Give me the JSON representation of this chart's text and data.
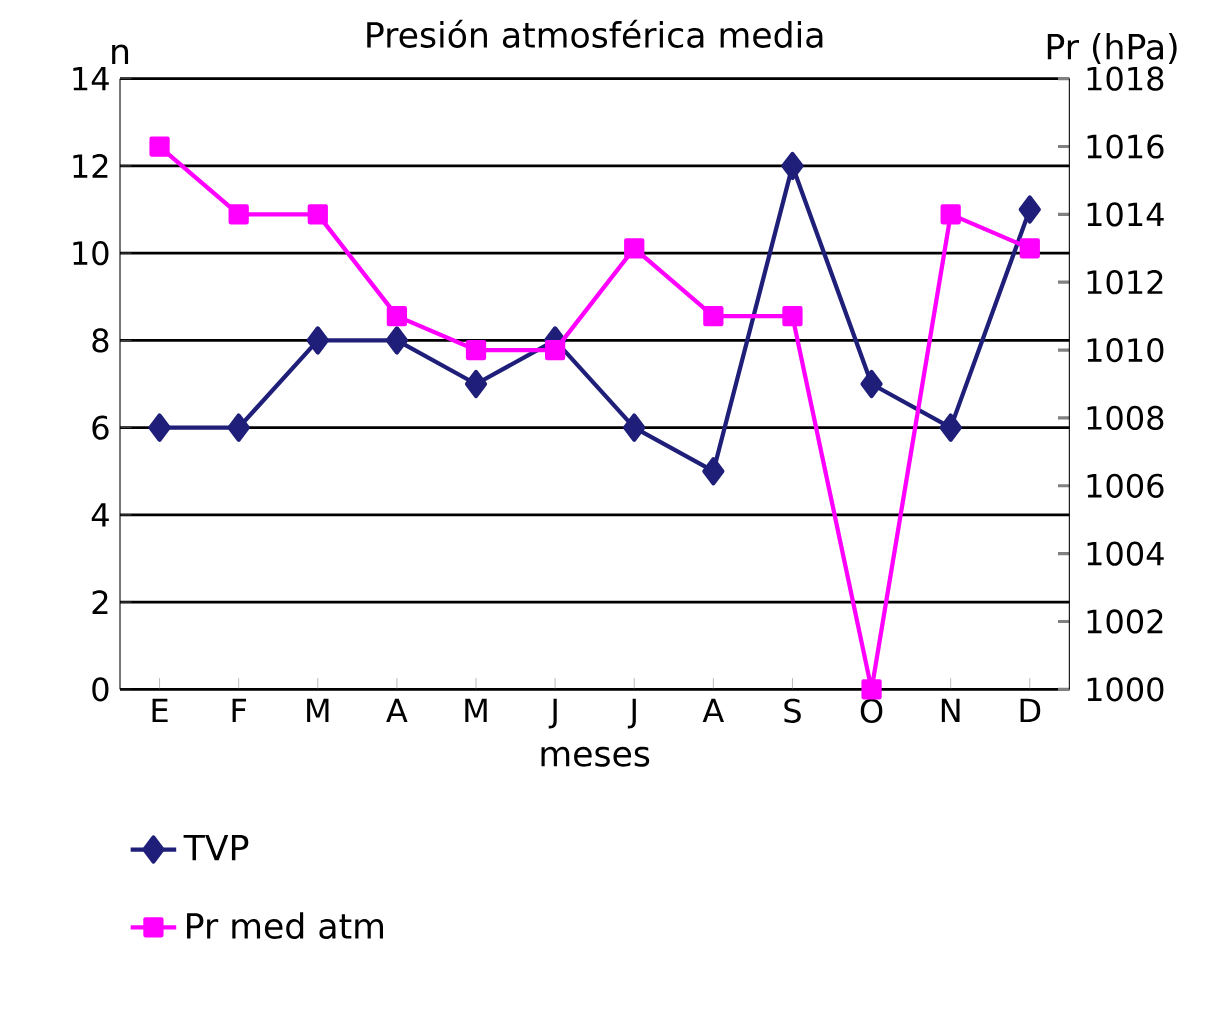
{
  "chart_data": {
    "type": "line",
    "title": "Presión atmosférica media",
    "xlabel": "meses",
    "ylabel": "n",
    "y2label": "Pr (hPa)",
    "categories": [
      "E",
      "F",
      "M",
      "A",
      "M",
      "J",
      "J",
      "A",
      "S",
      "O",
      "N",
      "D"
    ],
    "series": [
      {
        "name": "TVP",
        "color": "#1f1f7a",
        "marker": "diamond",
        "values": [
          6,
          6,
          8,
          8,
          7,
          8,
          6,
          5,
          12,
          7,
          6,
          11
        ]
      },
      {
        "name": "Pr med atm",
        "color": "#ff00ff",
        "marker": "square",
        "axis": "y2",
        "values": [
          1016,
          1014,
          1014,
          1011,
          1010,
          1010,
          1013,
          1011,
          1011,
          1000,
          1014,
          1013
        ]
      }
    ],
    "ylim": [
      0,
      14
    ],
    "yticks": [
      0,
      2,
      4,
      6,
      8,
      10,
      12,
      14
    ],
    "y2lim": [
      1000,
      1018
    ],
    "y2ticks": [
      1000,
      1002,
      1004,
      1006,
      1008,
      1010,
      1012,
      1014,
      1016,
      1018
    ],
    "grid": "y",
    "legend": "bottom left"
  }
}
